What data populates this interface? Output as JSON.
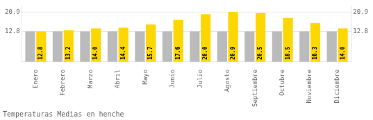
{
  "chart_data": {
    "type": "bar",
    "title": "Temperaturas Medias en henche",
    "categories": [
      "Enero",
      "Febrero",
      "Marzo",
      "Abril",
      "Mayo",
      "Junio",
      "Julio",
      "Agosto",
      "Septiembre",
      "Octubre",
      "Noviembre",
      "Diciembre"
    ],
    "series": [
      {
        "color": "#BBBBBB",
        "values": [
          12.8,
          12.8,
          12.8,
          12.8,
          12.8,
          12.8,
          12.8,
          12.8,
          12.8,
          12.8,
          12.8,
          12.8
        ]
      },
      {
        "color": "#FFD700",
        "values": [
          12.8,
          13.2,
          14.0,
          14.4,
          15.7,
          17.6,
          20.0,
          20.9,
          20.5,
          18.5,
          16.3,
          14.0
        ],
        "data_labels": true,
        "value_labels": [
          "12.8",
          "13.2",
          "14.0",
          "14.4",
          "15.7",
          "17.6",
          "20.0",
          "20.9",
          "20.5",
          "18.5",
          "16.3",
          "14.0"
        ]
      }
    ],
    "ylim": [
      0,
      23.5
    ],
    "yticks": [
      12.8,
      20.9
    ],
    "y2lim": [
      0,
      23.5
    ],
    "y2ticks": [
      12.8,
      20.9
    ],
    "grid": true
  }
}
